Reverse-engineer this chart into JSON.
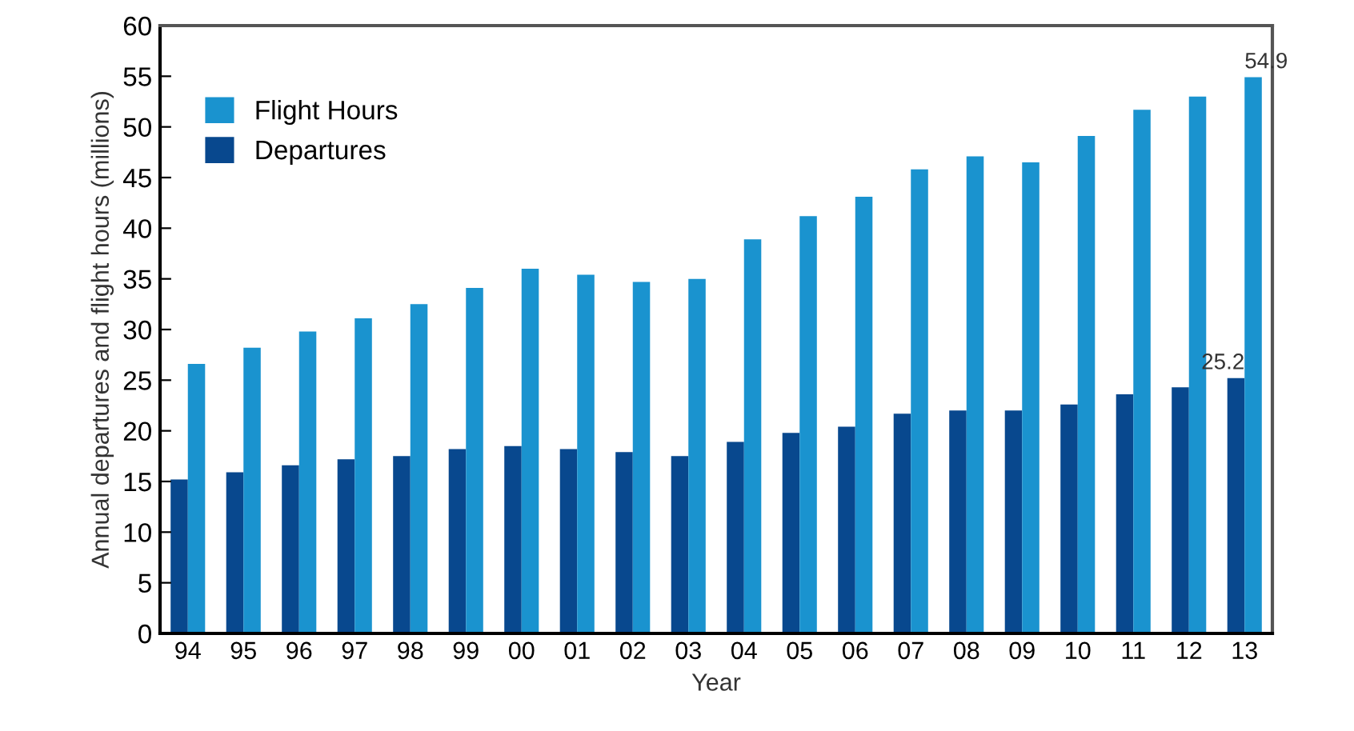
{
  "chart_data": {
    "type": "bar",
    "xlabel": "Year",
    "ylabel": "Annual departures and flight hours (millions)",
    "categories": [
      "94",
      "95",
      "96",
      "97",
      "98",
      "99",
      "00",
      "01",
      "02",
      "03",
      "04",
      "05",
      "06",
      "07",
      "08",
      "09",
      "10",
      "11",
      "12",
      "13"
    ],
    "series": [
      {
        "name": "Departures",
        "color": "#08488e",
        "values": [
          15.2,
          15.9,
          16.6,
          17.2,
          17.5,
          18.2,
          18.5,
          18.2,
          17.9,
          17.5,
          18.9,
          19.8,
          20.4,
          21.7,
          22.0,
          22.0,
          22.6,
          23.6,
          24.3,
          25.2
        ],
        "value_labels": [
          null,
          null,
          null,
          null,
          null,
          null,
          null,
          null,
          null,
          null,
          null,
          null,
          null,
          null,
          null,
          null,
          null,
          null,
          null,
          "25.2"
        ]
      },
      {
        "name": "Flight Hours",
        "color": "#1a93cf",
        "values": [
          26.6,
          28.2,
          29.8,
          31.1,
          32.5,
          34.1,
          36.0,
          35.4,
          34.7,
          35.0,
          38.9,
          41.2,
          43.1,
          45.8,
          47.1,
          46.5,
          49.1,
          51.7,
          53.0,
          54.9
        ],
        "value_labels": [
          null,
          null,
          null,
          null,
          null,
          null,
          null,
          null,
          null,
          null,
          null,
          null,
          null,
          null,
          null,
          null,
          null,
          null,
          null,
          "54.9"
        ]
      }
    ],
    "ylim": [
      0,
      60
    ],
    "yticks": [
      0,
      5,
      10,
      15,
      20,
      25,
      30,
      35,
      40,
      45,
      50,
      55,
      60
    ],
    "grid": false,
    "legend": "top left"
  }
}
